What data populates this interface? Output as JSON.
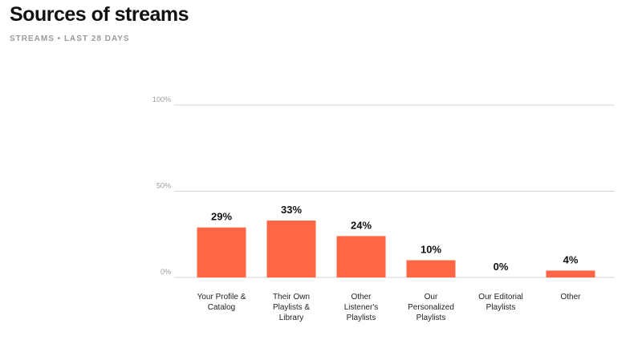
{
  "header": {
    "title": "Sources of streams",
    "subtitle": "STREAMS • LAST 28 DAYS"
  },
  "colors": {
    "bar": "#ff6645",
    "grid": "#d4d4d4",
    "tick_text": "#9a9a9a",
    "label_text": "#222222"
  },
  "chart_data": {
    "type": "bar",
    "title": "Sources of streams",
    "subtitle": "STREAMS • LAST 28 DAYS",
    "xlabel": "",
    "ylabel": "",
    "ylim": [
      0,
      100
    ],
    "yticks": [
      0,
      50,
      100
    ],
    "ytick_labels": [
      "0%",
      "50%",
      "100%"
    ],
    "grid": true,
    "categories": [
      [
        "Your Profile &",
        "Catalog"
      ],
      [
        "Their Own",
        "Playlists &",
        "Library"
      ],
      [
        "Other",
        "Listener's",
        "Playlists"
      ],
      [
        "Our",
        "Personalized",
        "Playlists"
      ],
      [
        "Our Editorial",
        "Playlists"
      ],
      [
        "Other"
      ]
    ],
    "values": [
      29,
      33,
      24,
      10,
      0,
      4
    ],
    "value_labels": [
      "29%",
      "33%",
      "24%",
      "10%",
      "0%",
      "4%"
    ]
  }
}
